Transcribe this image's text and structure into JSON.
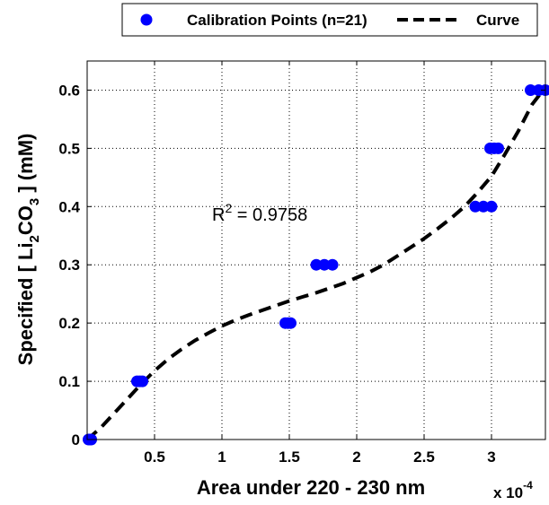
{
  "chart_data": {
    "type": "scatter",
    "xlabel": "Area under 220 - 230 nm",
    "ylabel": {
      "prefix": "Specified [ Li",
      "sub1": "2",
      "mid": "CO",
      "sub2": "3",
      "suffix": " ] (mM)"
    },
    "x_multiplier": {
      "base": "x 10",
      "exponent": "-4"
    },
    "xlim": [
      0,
      3.4
    ],
    "ylim": [
      0,
      0.65
    ],
    "x_ticks": [
      0.5,
      1,
      1.5,
      2,
      2.5,
      3
    ],
    "x_tick_labels": [
      "0.5",
      "1",
      "1.5",
      "2",
      "2.5",
      "3"
    ],
    "y_ticks": [
      0,
      0.1,
      0.2,
      0.3,
      0.4,
      0.5,
      0.6
    ],
    "y_tick_labels": [
      "0",
      "0.1",
      "0.2",
      "0.3",
      "0.4",
      "0.5",
      "0.6"
    ],
    "grid": true,
    "legend_position": "top-right",
    "annotation": {
      "base": "R",
      "exponent": "2",
      "rest": " = 0.9758"
    },
    "series": [
      {
        "name": "Calibration Points (n=21)",
        "marker": "circle",
        "color": "#0000ff",
        "points": [
          [
            0.01,
            0.0
          ],
          [
            0.02,
            0.0
          ],
          [
            0.03,
            0.0
          ],
          [
            0.37,
            0.1
          ],
          [
            0.39,
            0.1
          ],
          [
            0.41,
            0.1
          ],
          [
            1.47,
            0.2
          ],
          [
            1.49,
            0.2
          ],
          [
            1.51,
            0.2
          ],
          [
            1.7,
            0.3
          ],
          [
            1.76,
            0.3
          ],
          [
            1.82,
            0.3
          ],
          [
            2.88,
            0.4
          ],
          [
            2.94,
            0.4
          ],
          [
            3.0,
            0.4
          ],
          [
            2.99,
            0.5
          ],
          [
            3.02,
            0.5
          ],
          [
            3.05,
            0.5
          ],
          [
            3.29,
            0.6
          ],
          [
            3.35,
            0.6
          ],
          [
            3.4,
            0.6
          ]
        ]
      },
      {
        "name": "Curve",
        "style": "dashed",
        "color": "#000000",
        "points": [
          [
            0.0,
            0.0
          ],
          [
            0.1,
            0.02
          ],
          [
            0.2,
            0.045
          ],
          [
            0.3,
            0.07
          ],
          [
            0.4,
            0.095
          ],
          [
            0.5,
            0.118
          ],
          [
            0.6,
            0.138
          ],
          [
            0.7,
            0.155
          ],
          [
            0.8,
            0.17
          ],
          [
            0.9,
            0.183
          ],
          [
            1.0,
            0.195
          ],
          [
            1.1,
            0.205
          ],
          [
            1.2,
            0.214
          ],
          [
            1.3,
            0.222
          ],
          [
            1.4,
            0.23
          ],
          [
            1.5,
            0.238
          ],
          [
            1.6,
            0.245
          ],
          [
            1.7,
            0.252
          ],
          [
            1.8,
            0.26
          ],
          [
            1.9,
            0.268
          ],
          [
            2.0,
            0.278
          ],
          [
            2.1,
            0.288
          ],
          [
            2.2,
            0.3
          ],
          [
            2.3,
            0.315
          ],
          [
            2.4,
            0.33
          ],
          [
            2.5,
            0.345
          ],
          [
            2.6,
            0.362
          ],
          [
            2.7,
            0.38
          ],
          [
            2.8,
            0.4
          ],
          [
            2.9,
            0.425
          ],
          [
            3.0,
            0.452
          ],
          [
            3.1,
            0.49
          ],
          [
            3.2,
            0.53
          ],
          [
            3.3,
            0.575
          ],
          [
            3.4,
            0.605
          ]
        ]
      }
    ]
  }
}
